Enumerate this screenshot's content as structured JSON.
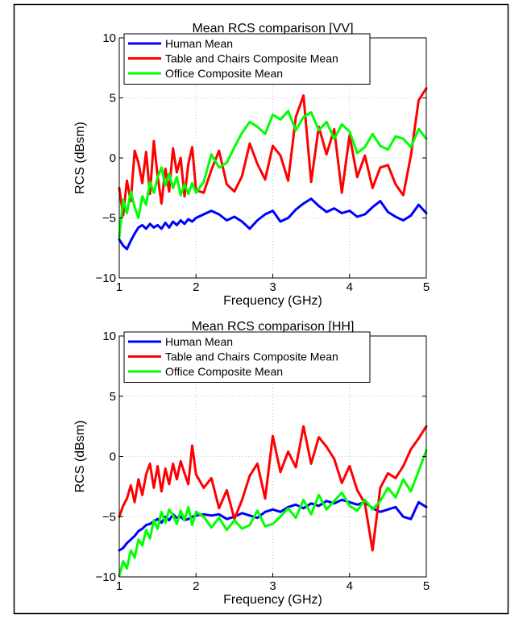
{
  "chart_data": [
    {
      "type": "line",
      "title": "Mean RCS comparison [VV]",
      "xlabel": "Frequency (GHz)",
      "ylabel": "RCS (dBsm)",
      "xlim": [
        1,
        5
      ],
      "ylim": [
        -10,
        10
      ],
      "xticks": [
        "1",
        "2",
        "3",
        "4",
        "5"
      ],
      "yticks": [
        "−10",
        "−5",
        "0",
        "5",
        "10"
      ],
      "grid": true,
      "legend_position": "top-left",
      "series": [
        {
          "name": "Human Mean",
          "color": "#0000ff",
          "x": [
            1.0,
            1.05,
            1.1,
            1.15,
            1.2,
            1.25,
            1.3,
            1.35,
            1.4,
            1.45,
            1.5,
            1.55,
            1.6,
            1.65,
            1.7,
            1.75,
            1.8,
            1.85,
            1.9,
            1.95,
            2.0,
            2.1,
            2.2,
            2.3,
            2.4,
            2.5,
            2.6,
            2.7,
            2.8,
            2.9,
            3.0,
            3.1,
            3.2,
            3.3,
            3.4,
            3.5,
            3.6,
            3.7,
            3.8,
            3.9,
            4.0,
            4.1,
            4.2,
            4.3,
            4.4,
            4.5,
            4.6,
            4.7,
            4.8,
            4.9,
            5.0
          ],
          "y": [
            -6.8,
            -7.3,
            -7.6,
            -6.9,
            -6.3,
            -5.8,
            -5.6,
            -5.9,
            -5.5,
            -5.8,
            -5.6,
            -5.9,
            -5.4,
            -5.8,
            -5.3,
            -5.6,
            -5.2,
            -5.5,
            -5.1,
            -5.3,
            -5.0,
            -4.7,
            -4.4,
            -4.7,
            -5.2,
            -4.9,
            -5.3,
            -5.9,
            -5.2,
            -4.7,
            -4.4,
            -5.3,
            -5.0,
            -4.3,
            -3.8,
            -3.4,
            -4.0,
            -4.5,
            -4.2,
            -4.6,
            -4.4,
            -4.9,
            -4.7,
            -4.1,
            -3.6,
            -4.5,
            -4.9,
            -5.2,
            -4.8,
            -3.9,
            -4.6
          ]
        },
        {
          "name": "Table and Chairs Composite Mean",
          "color": "#ff0000",
          "x": [
            1.0,
            1.05,
            1.1,
            1.15,
            1.2,
            1.25,
            1.3,
            1.35,
            1.4,
            1.45,
            1.5,
            1.55,
            1.6,
            1.65,
            1.7,
            1.75,
            1.8,
            1.85,
            1.9,
            1.95,
            2.0,
            2.1,
            2.2,
            2.3,
            2.4,
            2.5,
            2.6,
            2.7,
            2.8,
            2.9,
            3.0,
            3.1,
            3.2,
            3.3,
            3.4,
            3.5,
            3.6,
            3.7,
            3.8,
            3.9,
            4.0,
            4.1,
            4.2,
            4.3,
            4.4,
            4.5,
            4.6,
            4.7,
            4.8,
            4.9,
            5.0
          ],
          "y": [
            -2.5,
            -4.8,
            -1.9,
            -3.6,
            0.6,
            -0.4,
            -2.1,
            0.5,
            -3.0,
            1.4,
            -1.5,
            -3.8,
            -0.9,
            -2.8,
            0.8,
            -1.2,
            0.0,
            -3.2,
            -0.5,
            0.9,
            -2.7,
            -2.9,
            -1.0,
            0.6,
            -2.2,
            -2.8,
            -1.5,
            1.2,
            -0.5,
            -1.8,
            1.0,
            0.2,
            -1.9,
            3.4,
            5.2,
            -2.0,
            2.6,
            0.3,
            2.4,
            -2.9,
            1.9,
            -1.6,
            0.2,
            -2.5,
            -0.8,
            -0.6,
            -2.2,
            -3.1,
            0.2,
            4.8,
            5.8
          ]
        },
        {
          "name": "Office Composite Mean",
          "color": "#00ff00",
          "x": [
            1.0,
            1.05,
            1.1,
            1.15,
            1.2,
            1.25,
            1.3,
            1.35,
            1.4,
            1.45,
            1.5,
            1.55,
            1.6,
            1.65,
            1.7,
            1.75,
            1.8,
            1.85,
            1.9,
            1.95,
            2.0,
            2.1,
            2.2,
            2.3,
            2.4,
            2.5,
            2.6,
            2.7,
            2.8,
            2.9,
            3.0,
            3.1,
            3.2,
            3.3,
            3.4,
            3.5,
            3.6,
            3.7,
            3.8,
            3.9,
            4.0,
            4.1,
            4.2,
            4.3,
            4.4,
            4.5,
            4.6,
            4.7,
            4.8,
            4.9,
            5.0
          ],
          "y": [
            -6.6,
            -3.5,
            -4.6,
            -2.8,
            -4.1,
            -5.0,
            -3.2,
            -3.9,
            -2.0,
            -2.9,
            -1.6,
            -0.8,
            -2.3,
            -1.3,
            -2.5,
            -1.6,
            -3.1,
            -2.2,
            -3.0,
            -2.1,
            -2.9,
            -2.0,
            0.3,
            -0.8,
            -0.4,
            0.9,
            2.1,
            3.0,
            2.6,
            2.0,
            3.6,
            3.2,
            3.9,
            2.3,
            3.4,
            3.8,
            2.3,
            3.0,
            1.6,
            2.8,
            2.2,
            0.4,
            0.9,
            2.0,
            1.0,
            0.7,
            1.8,
            1.6,
            0.9,
            2.4,
            1.6
          ]
        }
      ]
    },
    {
      "type": "line",
      "title": "Mean RCS comparison [HH]",
      "xlabel": "Frequency (GHz)",
      "ylabel": "RCS (dBsm)",
      "xlim": [
        1,
        5
      ],
      "ylim": [
        -10,
        10
      ],
      "xticks": [
        "1",
        "2",
        "3",
        "4",
        "5"
      ],
      "yticks": [
        "−10",
        "−5",
        "0",
        "5",
        "10"
      ],
      "grid": true,
      "legend_position": "top-left",
      "series": [
        {
          "name": "Human Mean",
          "color": "#0000ff",
          "x": [
            1.0,
            1.05,
            1.1,
            1.15,
            1.2,
            1.25,
            1.3,
            1.35,
            1.4,
            1.45,
            1.5,
            1.55,
            1.6,
            1.65,
            1.7,
            1.75,
            1.8,
            1.85,
            1.9,
            1.95,
            2.0,
            2.1,
            2.2,
            2.3,
            2.4,
            2.5,
            2.6,
            2.7,
            2.8,
            2.9,
            3.0,
            3.1,
            3.2,
            3.3,
            3.4,
            3.5,
            3.6,
            3.7,
            3.8,
            3.9,
            4.0,
            4.1,
            4.2,
            4.3,
            4.4,
            4.5,
            4.6,
            4.7,
            4.8,
            4.9,
            5.0
          ],
          "y": [
            -7.8,
            -7.6,
            -7.2,
            -6.9,
            -6.6,
            -6.2,
            -6.0,
            -5.7,
            -5.6,
            -5.4,
            -5.2,
            -5.5,
            -5.0,
            -5.3,
            -4.8,
            -5.1,
            -5.0,
            -5.3,
            -5.2,
            -5.0,
            -4.9,
            -4.8,
            -4.9,
            -4.8,
            -5.2,
            -5.0,
            -4.7,
            -4.9,
            -5.1,
            -4.6,
            -4.4,
            -4.6,
            -4.2,
            -4.0,
            -4.3,
            -3.9,
            -4.1,
            -3.7,
            -3.9,
            -3.6,
            -3.8,
            -4.0,
            -3.8,
            -4.3,
            -4.6,
            -4.4,
            -4.2,
            -5.0,
            -5.2,
            -3.8,
            -4.2
          ]
        },
        {
          "name": "Table and Chairs Composite Mean",
          "color": "#ff0000",
          "x": [
            1.0,
            1.05,
            1.1,
            1.15,
            1.2,
            1.25,
            1.3,
            1.35,
            1.4,
            1.45,
            1.5,
            1.55,
            1.6,
            1.65,
            1.7,
            1.75,
            1.8,
            1.85,
            1.9,
            1.95,
            2.0,
            2.1,
            2.2,
            2.3,
            2.4,
            2.5,
            2.6,
            2.7,
            2.8,
            2.9,
            3.0,
            3.1,
            3.2,
            3.3,
            3.4,
            3.5,
            3.6,
            3.7,
            3.8,
            3.9,
            4.0,
            4.1,
            4.2,
            4.3,
            4.4,
            4.5,
            4.6,
            4.7,
            4.8,
            4.9,
            5.0
          ],
          "y": [
            -5.0,
            -4.1,
            -3.5,
            -2.4,
            -3.8,
            -1.9,
            -3.2,
            -1.5,
            -0.6,
            -2.6,
            -0.8,
            -2.9,
            -1.0,
            -2.3,
            -0.6,
            -1.9,
            -0.4,
            -1.4,
            -2.3,
            0.9,
            -1.5,
            -2.6,
            -1.8,
            -4.3,
            -2.8,
            -5.2,
            -3.6,
            -1.6,
            -0.6,
            -3.5,
            1.7,
            -1.3,
            0.4,
            -0.9,
            2.5,
            -0.6,
            1.6,
            0.8,
            -0.2,
            -2.2,
            -0.8,
            -2.8,
            -3.9,
            -7.8,
            -2.6,
            -1.4,
            -1.8,
            -0.8,
            0.6,
            1.5,
            2.5
          ]
        },
        {
          "name": "Office Composite Mean",
          "color": "#00ff00",
          "x": [
            1.0,
            1.05,
            1.1,
            1.15,
            1.2,
            1.25,
            1.3,
            1.35,
            1.4,
            1.45,
            1.5,
            1.55,
            1.6,
            1.65,
            1.7,
            1.75,
            1.8,
            1.85,
            1.9,
            1.95,
            2.0,
            2.1,
            2.2,
            2.3,
            2.4,
            2.5,
            2.6,
            2.7,
            2.8,
            2.9,
            3.0,
            3.1,
            3.2,
            3.3,
            3.4,
            3.5,
            3.6,
            3.7,
            3.8,
            3.9,
            4.0,
            4.1,
            4.2,
            4.3,
            4.4,
            4.5,
            4.6,
            4.7,
            4.8,
            4.9,
            5.0
          ],
          "y": [
            -9.9,
            -8.7,
            -9.3,
            -7.8,
            -8.4,
            -6.9,
            -7.4,
            -6.1,
            -6.8,
            -5.3,
            -6.0,
            -4.6,
            -5.5,
            -4.4,
            -4.9,
            -5.6,
            -4.5,
            -5.3,
            -4.2,
            -5.7,
            -4.6,
            -5.0,
            -5.9,
            -5.1,
            -6.1,
            -5.3,
            -6.0,
            -5.7,
            -4.5,
            -5.8,
            -5.6,
            -5.0,
            -4.3,
            -5.1,
            -3.6,
            -4.8,
            -3.2,
            -4.4,
            -3.7,
            -3.0,
            -4.1,
            -4.5,
            -3.6,
            -4.4,
            -3.7,
            -2.6,
            -3.4,
            -1.9,
            -2.9,
            -1.2,
            0.5
          ]
        }
      ]
    }
  ]
}
